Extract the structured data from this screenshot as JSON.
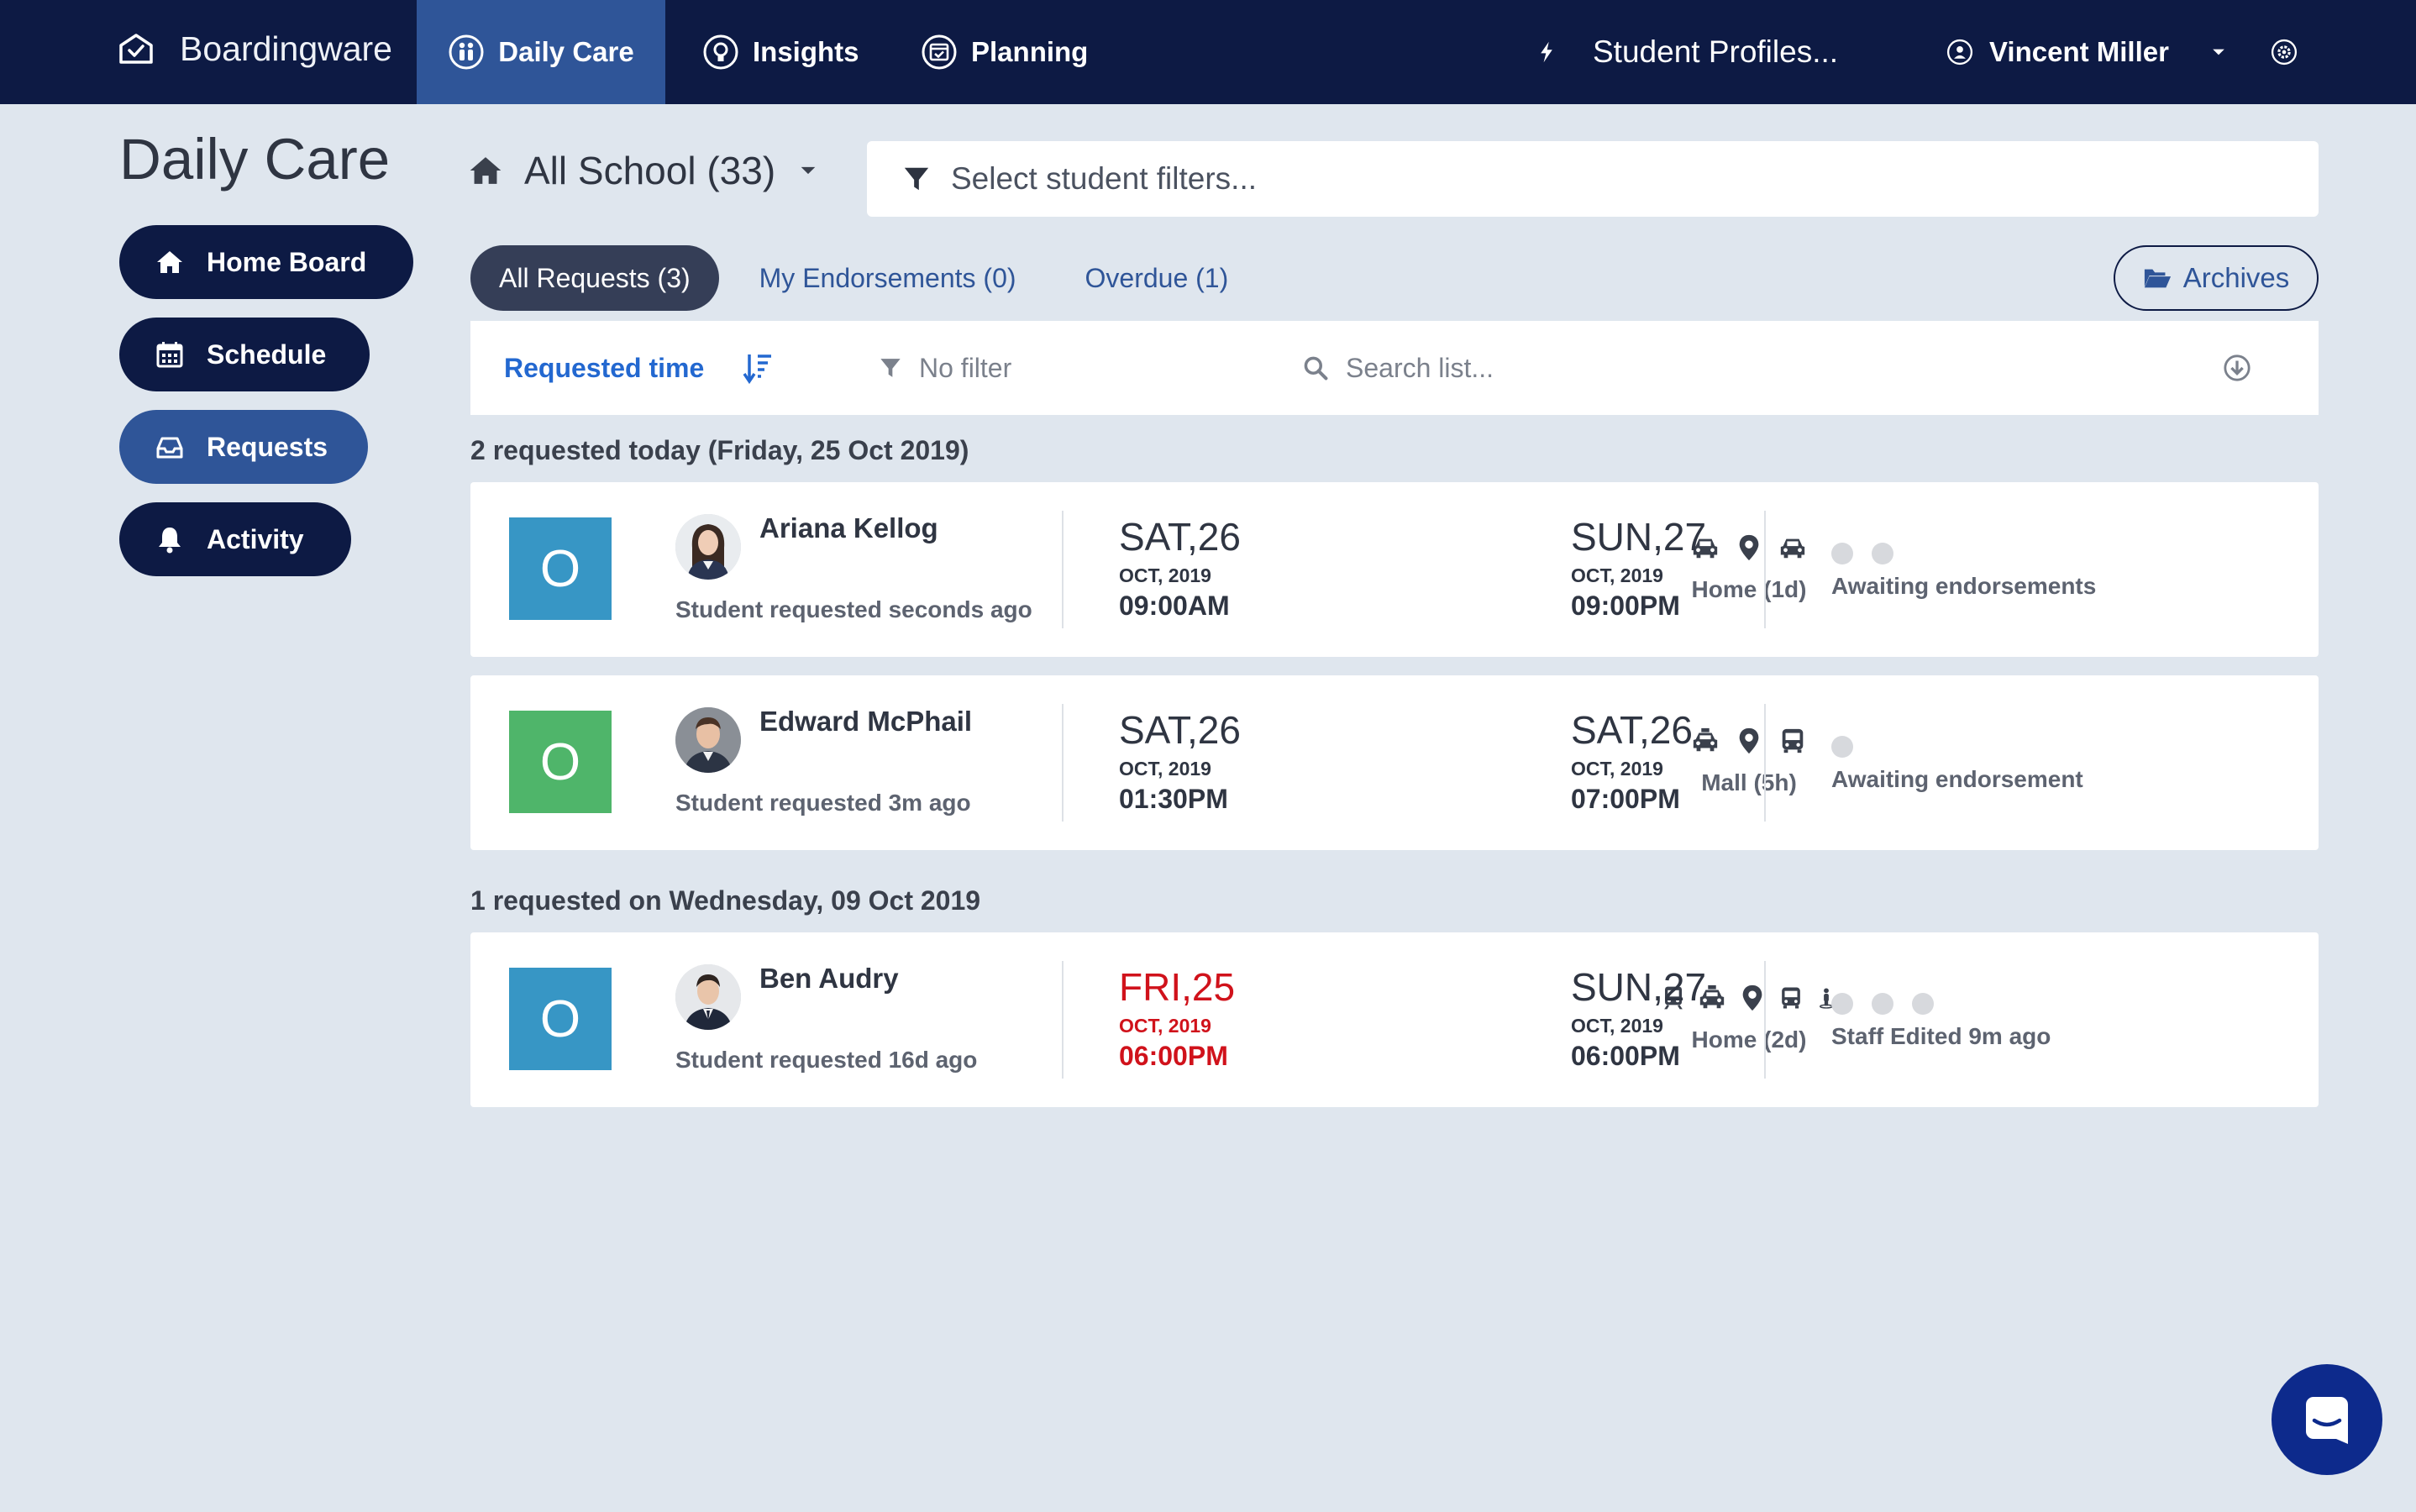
{
  "app": {
    "brand": "Boardingware",
    "nav": {
      "daily_care": "Daily Care",
      "insights": "Insights",
      "planning": "Planning",
      "student_profiles": "Student Profiles...",
      "user": "Vincent Miller"
    }
  },
  "sidebar": {
    "title": "Daily Care",
    "items": [
      {
        "label": "Home Board",
        "icon": "home-icon"
      },
      {
        "label": "Schedule",
        "icon": "calendar-icon"
      },
      {
        "label": "Requests",
        "icon": "inbox-icon",
        "active": true
      },
      {
        "label": "Activity",
        "icon": "bell-icon"
      }
    ]
  },
  "scope": {
    "label": "All School (33)"
  },
  "filters": {
    "placeholder": "Select student filters..."
  },
  "tabs": [
    {
      "label": "All Requests (3)",
      "active": true
    },
    {
      "label": "My Endorsements (0)"
    },
    {
      "label": "Overdue (1)"
    }
  ],
  "archives_label": "Archives",
  "toolbar": {
    "sort_label": "Requested time",
    "filter_label": "No filter",
    "search_placeholder": "Search list..."
  },
  "groups": [
    {
      "heading": "2 requested today (Friday, 25 Oct 2019)",
      "requests": [
        {
          "status_letter": "O",
          "status_color": "#3796c5",
          "student": "Ariana Kellog",
          "requested": "Student requested seconds ago",
          "out": {
            "day": "SAT,26",
            "month": "OCT, 2019",
            "time": "09:00AM",
            "overdue": false
          },
          "trip": {
            "label": "Home (1d)",
            "icons": [
              "car-icon",
              "location-pin-icon",
              "car-icon"
            ]
          },
          "return": {
            "day": "SUN,27",
            "month": "OCT, 2019",
            "time": "09:00PM"
          },
          "endorsement_dots": 2,
          "endorsement_text": "Awaiting endorsements"
        },
        {
          "status_letter": "O",
          "status_color": "#4fb56a",
          "student": "Edward McPhail",
          "requested": "Student requested 3m ago",
          "out": {
            "day": "SAT,26",
            "month": "OCT, 2019",
            "time": "01:30PM",
            "overdue": false
          },
          "trip": {
            "label": "Mall (5h)",
            "icons": [
              "taxi-icon",
              "location-pin-icon",
              "bus-icon"
            ]
          },
          "return": {
            "day": "SAT,26",
            "month": "OCT, 2019",
            "time": "07:00PM"
          },
          "endorsement_dots": 1,
          "endorsement_text": "Awaiting endorsement"
        }
      ]
    },
    {
      "heading": "1 requested on Wednesday, 09 Oct 2019",
      "requests": [
        {
          "status_letter": "O",
          "status_color": "#3796c5",
          "student": "Ben Audry",
          "requested": "Student requested 16d ago",
          "out": {
            "day": "FRI,25",
            "month": "OCT, 2019",
            "time": "06:00PM",
            "overdue": true
          },
          "trip": {
            "label": "Home (2d)",
            "icons": [
              "train-icon",
              "taxi-icon",
              "location-pin-icon",
              "bus-icon",
              "walking-icon"
            ]
          },
          "return": {
            "day": "SUN,27",
            "month": "OCT, 2019",
            "time": "06:00PM"
          },
          "endorsement_dots": 3,
          "endorsement_text": "Staff Edited 9m ago"
        }
      ]
    }
  ],
  "colors": {
    "nav_bg": "#0d1a44",
    "nav_active": "#2f5598",
    "link_blue": "#2368d0",
    "overdue_red": "#d0121b",
    "page_bg": "#dfe6ee"
  }
}
